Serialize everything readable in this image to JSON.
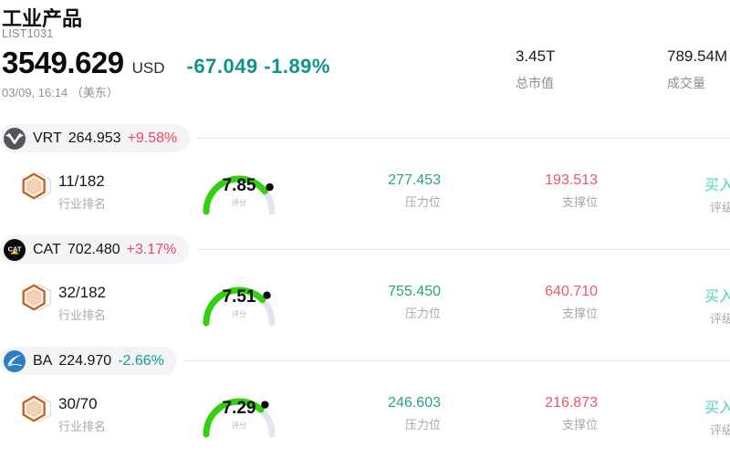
{
  "colors": {
    "up_red": "#f5455c",
    "down_teal": "#12a08e",
    "header_change_teal": "#0f9488",
    "resistance_teal": "#27a388",
    "support_red": "#f25568",
    "rating_cyan": "#48d6c3",
    "gauge_green": "#33d10d",
    "gauge_track": "#e4e4ee",
    "gauge_dot": "#0c0c0c"
  },
  "header": {
    "title": "工业产品",
    "subtitle": "LIST1031",
    "price": "3549.629",
    "currency": "USD",
    "change": "-67.049 -1.89%",
    "change_direction": "down",
    "timestamp": "03/09, 16:14 （美东）",
    "stats": [
      {
        "value": "3.45T",
        "label": "总市值"
      },
      {
        "value": "789.54M",
        "label": "成交量"
      }
    ]
  },
  "rows": [
    {
      "ticker": "VRT",
      "price": "264.953",
      "change": "+9.58%",
      "change_direction": "up",
      "logo": "vertiv-logo",
      "rank": "11/182",
      "rank_label": "行业排名",
      "score": "7.85",
      "score_label": "评分",
      "resistance": "277.453",
      "resistance_label": "压力位",
      "support": "193.513",
      "support_label": "支撑位",
      "rating": "买入",
      "rating_label": "评级"
    },
    {
      "ticker": "CAT",
      "price": "702.480",
      "change": "+3.17%",
      "change_direction": "up",
      "logo": "caterpillar-logo",
      "rank": "32/182",
      "rank_label": "行业排名",
      "score": "7.51",
      "score_label": "评分",
      "resistance": "755.450",
      "resistance_label": "压力位",
      "support": "640.710",
      "support_label": "支撑位",
      "rating": "买入",
      "rating_label": "评级"
    },
    {
      "ticker": "BA",
      "price": "224.970",
      "change": "-2.66%",
      "change_direction": "down",
      "logo": "boeing-logo",
      "rank": "30/70",
      "rank_label": "行业排名",
      "score": "7.29",
      "score_label": "评分",
      "resistance": "246.603",
      "resistance_label": "压力位",
      "support": "216.873",
      "support_label": "支撑位",
      "rating": "买入",
      "rating_label": "评级"
    }
  ]
}
